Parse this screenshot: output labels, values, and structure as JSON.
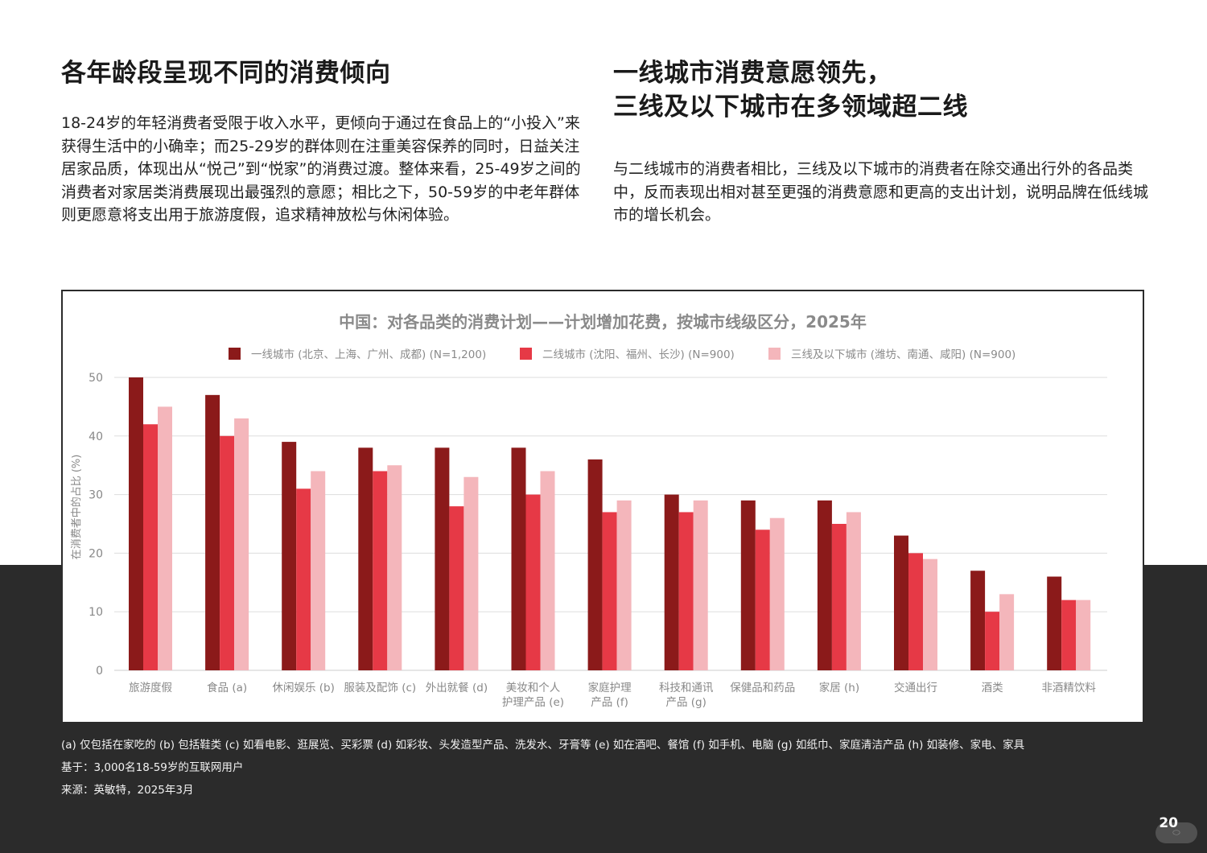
{
  "left_section": {
    "heading": "各年龄段呈现不同的消费倾向",
    "body": "18-24岁的年轻消费者受限于收入水平，更倾向于通过在食品上的“小投入”来获得生活中的小确幸；而25-29岁的群体则在注重美容保养的同时，日益关注居家品质，体现出从“悦己”到“悦家”的消费过渡。整体来看，25-49岁之间的消费者对家居类消费展现出最强烈的意愿；相比之下，50-59岁的中老年群体则更愿意将支出用于旅游度假，追求精神放松与休闲体验。"
  },
  "right_section": {
    "heading_line1": "一线城市消费意愿领先，",
    "heading_line2": "三线及以下城市在多领域超二线",
    "body": "与二线城市的消费者相比，三线及以下城市的消费者在除交通出行外的各品类中，反而表现出相对甚至更强的消费意愿和更高的支出计划，说明品牌在低线城市的增长机会。"
  },
  "chart_data": {
    "type": "bar",
    "title": "中国：对各品类的消费计划——计划增加花费，按城市线级区分，2025年",
    "ylabel": "在消费者中的占比 (%)",
    "xlabel": "",
    "ylim": [
      0,
      50
    ],
    "yticks": [
      0,
      10,
      20,
      30,
      40,
      50
    ],
    "grid": true,
    "legend_position": "top",
    "categories": [
      [
        "旅游度假"
      ],
      [
        "食品 (a)"
      ],
      [
        "休闲娱乐 (b)"
      ],
      [
        "服装及配饰 (c)"
      ],
      [
        "外出就餐 (d)"
      ],
      [
        "美妆和个人",
        "护理产品 (e)"
      ],
      [
        "家庭护理",
        "产品 (f)"
      ],
      [
        "科技和通讯",
        "产品 (g)"
      ],
      [
        "保健品和药品"
      ],
      [
        "家居 (h)"
      ],
      [
        "交通出行"
      ],
      [
        "酒类"
      ],
      [
        "非酒精饮料"
      ]
    ],
    "series": [
      {
        "name": "一线城市 (北京、上海、广州、成都) (N=1,200)",
        "color": "#8b1a1a",
        "values": [
          50,
          47,
          39,
          38,
          38,
          38,
          36,
          30,
          29,
          29,
          23,
          17,
          16
        ]
      },
      {
        "name": "二线城市 (沈阳、福州、长沙) (N=900)",
        "color": "#e63946",
        "values": [
          42,
          40,
          31,
          34,
          28,
          30,
          27,
          27,
          24,
          25,
          20,
          10,
          12
        ]
      },
      {
        "name": "三线及以下城市 (潍坊、南通、咸阳) (N=900)",
        "color": "#f4b6bb",
        "values": [
          45,
          43,
          34,
          35,
          33,
          34,
          29,
          29,
          26,
          27,
          19,
          13,
          12
        ]
      }
    ]
  },
  "footnotes": {
    "note1": "(a) 仅包括在家吃的 (b) 包括鞋类 (c) 如看电影、逛展览、买彩票 (d) 如彩妆、头发造型产品、洗发水、牙膏等 (e) 如在酒吧、餐馆 (f) 如手机、电脑 (g) 如纸巾、家庭清洁产品 (h) 如装修、家电、家具",
    "note2": "基于：3,000名18-59岁的互联网用户",
    "note3": "来源：英敏特，2025年3月"
  },
  "page_number": "20",
  "colors": {
    "dark_band": "#2b2b2b",
    "grid": "#dddddd",
    "axis_text": "#888888"
  }
}
